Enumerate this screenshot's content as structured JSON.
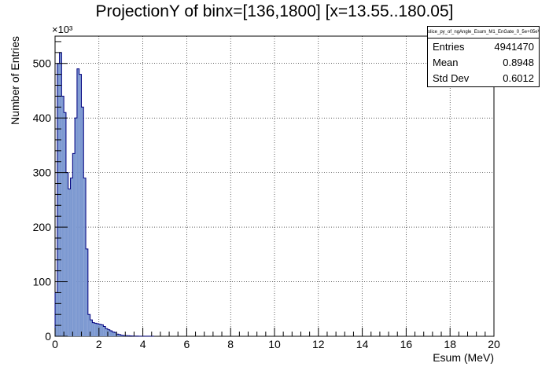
{
  "chart_data": {
    "type": "bar",
    "title": "ProjectionY of binx=[136,1800] [x=13.55..180.05]",
    "xlabel": "Esum (MeV)",
    "ylabel": "Number of Entries",
    "y_exponent_label": "×10³",
    "xlim": [
      0,
      20
    ],
    "ylim": [
      0,
      550
    ],
    "x_ticks": [
      "0",
      "2",
      "4",
      "6",
      "8",
      "10",
      "12",
      "14",
      "16",
      "18",
      "20"
    ],
    "y_ticks": [
      "0",
      "100",
      "200",
      "300",
      "400",
      "500"
    ],
    "grid": true,
    "bin_width": 0.1,
    "x_start": 0,
    "values": [
      80,
      500,
      520,
      440,
      410,
      300,
      270,
      290,
      335,
      400,
      490,
      480,
      420,
      290,
      160,
      40,
      30,
      25,
      24,
      23,
      22,
      21,
      18,
      14,
      12,
      10,
      8,
      7,
      4,
      3,
      2,
      1.5,
      1.2,
      1,
      0.8,
      0.6,
      0.4,
      0.3,
      0.2,
      0.1,
      0.1,
      0.1,
      0.1,
      0.1,
      0.1
    ],
    "fill_color": "#7d99d1",
    "line_color": "#00007f"
  },
  "stats": {
    "name": "slice_py_of_ngAngle_Esum_M1_EnGate_0_5e+05eV",
    "rows": [
      {
        "label": "Entries",
        "value": "4941470"
      },
      {
        "label": "Mean",
        "value": "0.8948"
      },
      {
        "label": "Std Dev",
        "value": "0.6012"
      }
    ]
  }
}
